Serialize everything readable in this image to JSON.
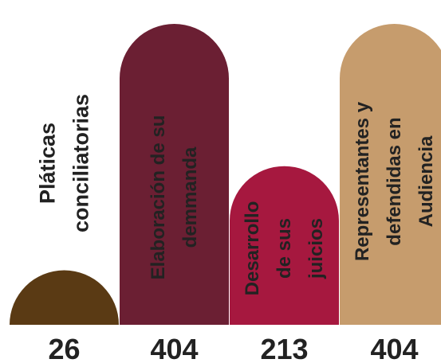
{
  "chart_data": {
    "type": "bar",
    "categories": [
      [
        "Pláticas",
        "conciliatorias"
      ],
      [
        "Elaboración de su",
        "demmanda"
      ],
      [
        "Desarrollo",
        "de sus",
        "juicios"
      ],
      [
        "Representantes y",
        "defendidas en",
        "Audiencia"
      ]
    ],
    "values": [
      26,
      404,
      213,
      404
    ],
    "colors": [
      "#5a3a14",
      "#6b1f33",
      "#a6183f",
      "#c69c6d"
    ],
    "ylim": [
      0,
      404
    ]
  }
}
